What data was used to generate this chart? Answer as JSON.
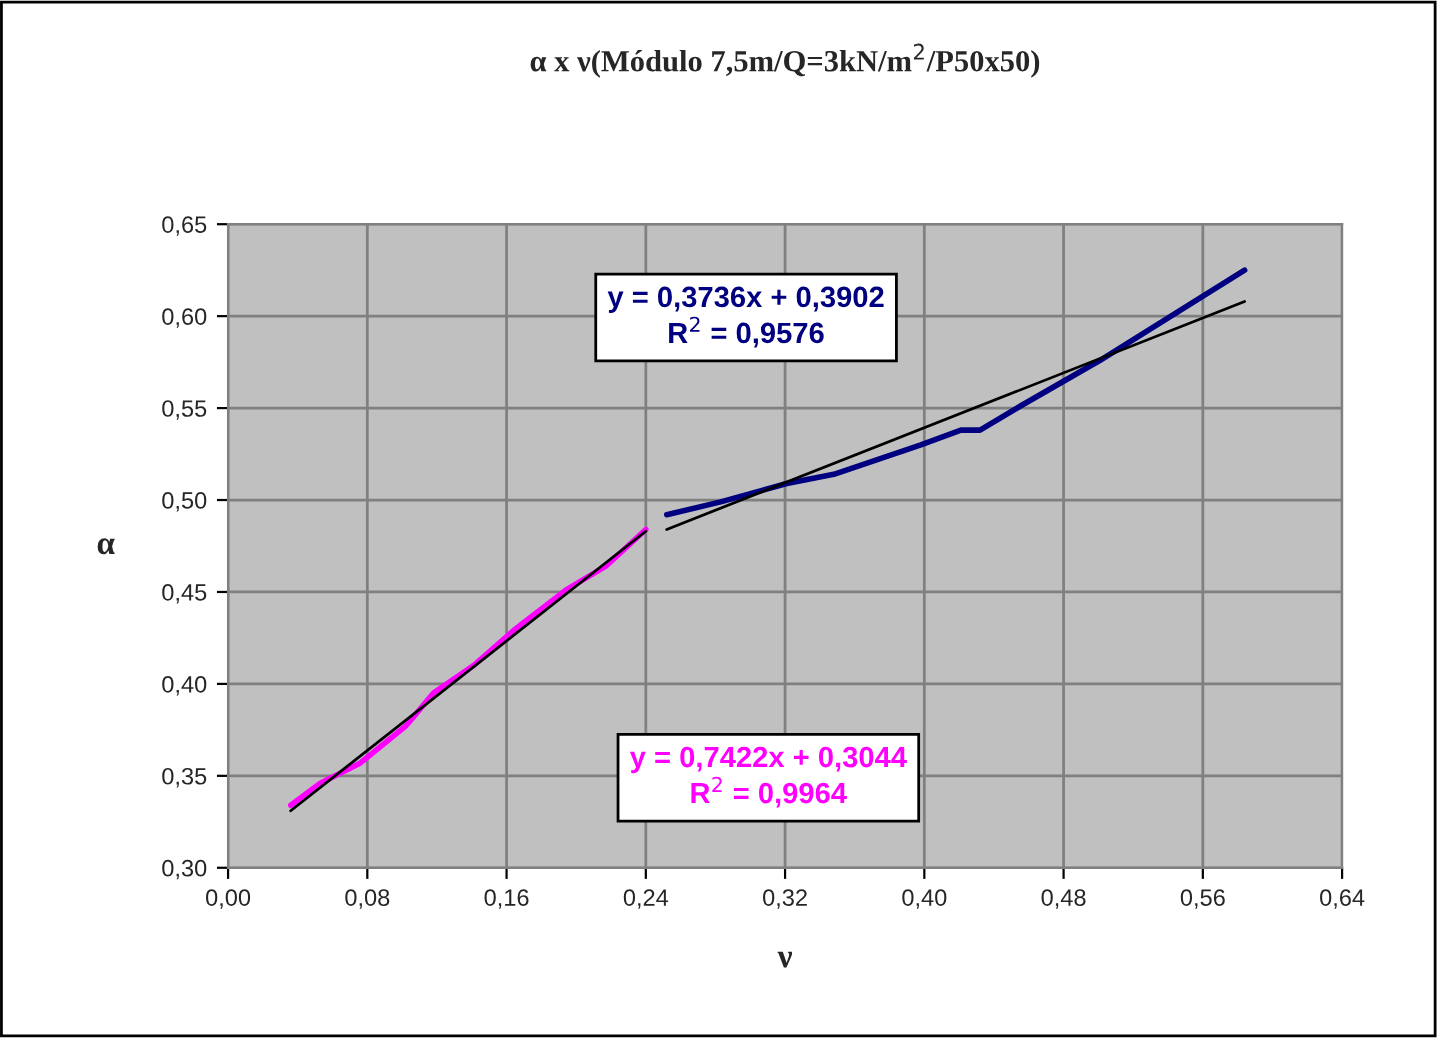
{
  "chart_data": {
    "type": "line",
    "title": "α x ν(Módulo 7,5m/Q=3kN/m$^{2}$/P50x50)",
    "xlabel": "ν",
    "ylabel": "α",
    "series": [
      {
        "color": "#ff00ff",
        "x": [
          0.036,
          0.053,
          0.076,
          0.102,
          0.118,
          0.141,
          0.164,
          0.194,
          0.217,
          0.24
        ],
        "values": [
          0.334,
          0.346,
          0.357,
          0.377,
          0.395,
          0.41,
          0.429,
          0.451,
          0.464,
          0.484
        ]
      },
      {
        "color": "#000080",
        "x": [
          0.252,
          0.283,
          0.321,
          0.348,
          0.398,
          0.421,
          0.432,
          0.455,
          0.501,
          0.584
        ],
        "values": [
          0.492,
          0.499,
          0.509,
          0.514,
          0.53,
          0.538,
          0.538,
          0.551,
          0.576,
          0.625
        ]
      },
      {
        "color": "#000000",
        "x": [
          0.036,
          0.24
        ],
        "values": [
          0.331,
          0.483
        ]
      },
      {
        "color": "#000000",
        "x": [
          0.252,
          0.584
        ],
        "values": [
          0.484,
          0.608
        ]
      }
    ],
    "annotations": [
      "y = 0,3736x + 0,3902\nR$^{2}$ = 0,9576",
      "y = 0,7422x + 0,3044\nR$^{2}$ = 0,9964"
    ],
    "xlim": [
      0,
      0.64
    ],
    "ylim": [
      0.3,
      0.65
    ],
    "xticks": [
      {
        "value": 0,
        "label": "0,00"
      },
      {
        "value": 0.08,
        "label": "0,08"
      },
      {
        "value": 0.16,
        "label": "0,16"
      },
      {
        "value": 0.24,
        "label": "0,24"
      },
      {
        "value": 0.32,
        "label": "0,32"
      },
      {
        "value": 0.4,
        "label": "0,40"
      },
      {
        "value": 0.48,
        "label": "0,48"
      },
      {
        "value": 0.56,
        "label": "0,56"
      },
      {
        "value": 0.64,
        "label": "0,64"
      }
    ],
    "yticks": [
      {
        "value": 0.3,
        "label": "0,30"
      },
      {
        "value": 0.35,
        "label": "0,35"
      },
      {
        "value": 0.4,
        "label": "0,40"
      },
      {
        "value": 0.45,
        "label": "0,45"
      },
      {
        "value": 0.5,
        "label": "0,50"
      },
      {
        "value": 0.55,
        "label": "0,55"
      },
      {
        "value": 0.6,
        "label": "0,60"
      },
      {
        "value": 0.65,
        "label": "0,65"
      }
    ],
    "grid": true,
    "legend": false
  }
}
